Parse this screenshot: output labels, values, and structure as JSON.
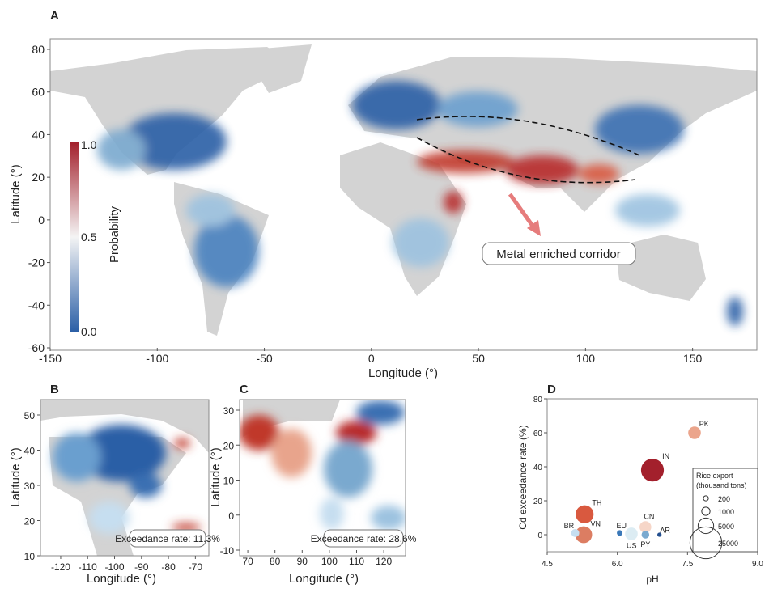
{
  "chart_data": [
    {
      "panel": "A",
      "type": "heatmap",
      "xlabel": "Longitude (°)",
      "ylabel": "Latitude (°)",
      "xlim": [
        -150,
        180
      ],
      "ylim": [
        -60,
        85
      ],
      "xticks": [
        "-150",
        "-100",
        "-50",
        "0",
        "50",
        "100",
        "150"
      ],
      "yticks": [
        "80",
        "60",
        "40",
        "20",
        "0",
        "-20",
        "-40",
        "-60"
      ],
      "colorbar": {
        "label": "Probability",
        "min": "0.0",
        "mid": "0.5",
        "max": "1.0",
        "low_color": "#2b5fa6",
        "mid_color": "#f4f4f4",
        "high_color": "#a3202c"
      },
      "annotation": "Metal enriched corridor",
      "land_color": "#d3d3d3"
    },
    {
      "panel": "B",
      "type": "heatmap",
      "xlabel": "Longitude (°)",
      "ylabel": "Latitude (°)",
      "xticks": [
        "-120",
        "-110",
        "-100",
        "-90",
        "-80",
        "-70"
      ],
      "yticks": [
        "50",
        "40",
        "30",
        "20",
        "10"
      ],
      "annotation": "Exceedance rate: 11.3%"
    },
    {
      "panel": "C",
      "type": "heatmap",
      "xlabel": "Longitude (°)",
      "ylabel": "Latitude (°)",
      "xticks": [
        "70",
        "80",
        "90",
        "100",
        "110",
        "120"
      ],
      "yticks": [
        "30",
        "20",
        "10",
        "0",
        "-10"
      ],
      "annotation": "Exceedance rate: 28.6%"
    },
    {
      "panel": "D",
      "type": "scatter",
      "xlabel": "pH",
      "ylabel": "Cd exceedance rate (%)",
      "xlim": [
        4.5,
        9.0
      ],
      "ylim": [
        -10,
        80
      ],
      "xticks": [
        "4.5",
        "6.0",
        "7.5",
        "9.0"
      ],
      "yticks": [
        "0",
        "20",
        "40",
        "60",
        "80"
      ],
      "legend": {
        "title": "Rice export (thousand tons)",
        "sizes": [
          "200",
          "1000",
          "5000",
          "25000"
        ],
        "placement": "lower-right"
      },
      "points": [
        {
          "label": "PK",
          "x": 7.65,
          "y": 60,
          "size": 3000,
          "color": "#eba58c"
        },
        {
          "label": "IN",
          "x": 6.75,
          "y": 38,
          "size": 12000,
          "color": "#a3202c"
        },
        {
          "label": "TH",
          "x": 5.3,
          "y": 12,
          "size": 7000,
          "color": "#d9593f"
        },
        {
          "label": "VN",
          "x": 5.28,
          "y": 0,
          "size": 6000,
          "color": "#dc7d62"
        },
        {
          "label": "BR",
          "x": 5.1,
          "y": 1,
          "size": 900,
          "color": "#c6def0"
        },
        {
          "label": "EU",
          "x": 6.05,
          "y": 1,
          "size": 300,
          "color": "#3a78b8"
        },
        {
          "label": "US",
          "x": 6.3,
          "y": 0.5,
          "size": 3000,
          "color": "#dcecf3"
        },
        {
          "label": "CN",
          "x": 6.6,
          "y": 4.5,
          "size": 2500,
          "color": "#f6d6c8"
        },
        {
          "label": "PY",
          "x": 6.6,
          "y": 0,
          "size": 800,
          "color": "#7aa9cf"
        },
        {
          "label": "AR",
          "x": 6.9,
          "y": 0,
          "size": 100,
          "color": "#234f8f"
        }
      ]
    }
  ]
}
